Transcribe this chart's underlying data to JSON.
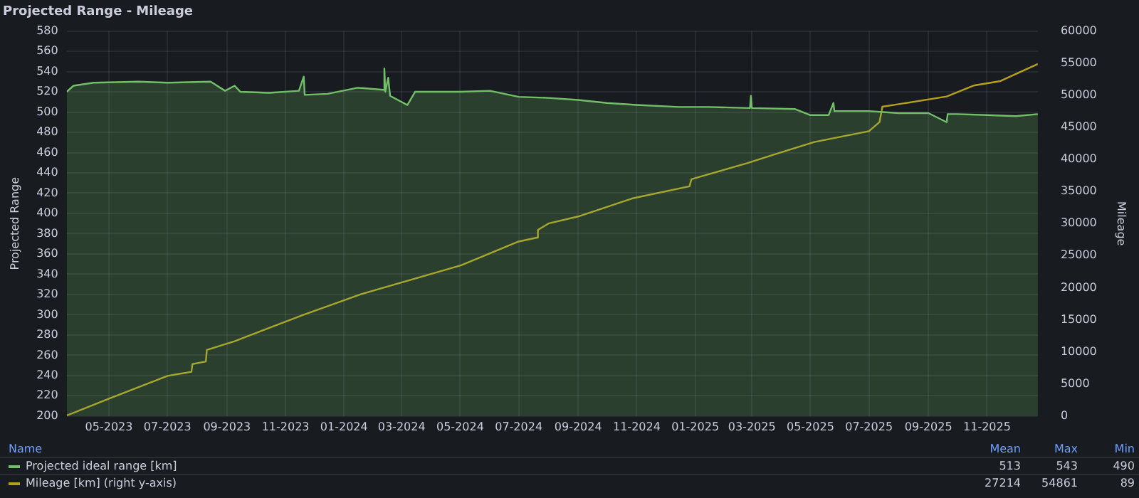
{
  "chart_data": {
    "type": "line",
    "title": "Projected Range - Mileage",
    "ylabel": "Projected Range",
    "y2label": "Mileage",
    "xlim": [
      "2023-03-18",
      "2025-12-24"
    ],
    "xticks": [
      {
        "value": "2023-05-01",
        "label": "05-2023"
      },
      {
        "value": "2023-07-01",
        "label": "07-2023"
      },
      {
        "value": "2023-09-01",
        "label": "09-2023"
      },
      {
        "value": "2023-11-01",
        "label": "11-2023"
      },
      {
        "value": "2024-01-01",
        "label": "01-2024"
      },
      {
        "value": "2024-03-01",
        "label": "03-2024"
      },
      {
        "value": "2024-05-01",
        "label": "05-2024"
      },
      {
        "value": "2024-07-01",
        "label": "07-2024"
      },
      {
        "value": "2024-09-01",
        "label": "09-2024"
      },
      {
        "value": "2024-11-01",
        "label": "11-2024"
      },
      {
        "value": "2025-01-01",
        "label": "01-2025"
      },
      {
        "value": "2025-03-01",
        "label": "03-2025"
      },
      {
        "value": "2025-05-01",
        "label": "05-2025"
      },
      {
        "value": "2025-07-01",
        "label": "07-2025"
      },
      {
        "value": "2025-09-01",
        "label": "09-2025"
      },
      {
        "value": "2025-11-01",
        "label": "11-2025"
      }
    ],
    "ylim": [
      200,
      580
    ],
    "yticks": [
      200,
      220,
      240,
      260,
      280,
      300,
      320,
      340,
      360,
      380,
      400,
      420,
      440,
      460,
      480,
      500,
      520,
      540,
      560,
      580
    ],
    "y2lim": [
      0,
      60000
    ],
    "y2ticks": [
      0,
      5000,
      10000,
      15000,
      20000,
      25000,
      30000,
      35000,
      40000,
      45000,
      50000,
      55000,
      60000
    ],
    "grid": true,
    "legend": "bottom",
    "marker": "none",
    "line_style": "solid",
    "series": [
      {
        "name": "Projected ideal range [km]",
        "color": "#73bf69",
        "type": "area",
        "x": [
          "2023-03-18",
          "2023-03-25",
          "2023-04-15",
          "2023-06-01",
          "2023-07-01",
          "2023-08-15",
          "2023-08-30",
          "2023-09-09",
          "2023-09-15",
          "2023-10-15",
          "2023-11-15",
          "2023-11-20",
          "2023-11-21",
          "2023-12-15",
          "2024-01-15",
          "2024-02-11",
          "2024-02-12",
          "2024-02-13",
          "2024-02-16",
          "2024-02-18",
          "2024-03-07",
          "2024-03-15",
          "2024-05-01",
          "2024-06-01",
          "2024-07-01",
          "2024-08-01",
          "2024-09-01",
          "2024-10-01",
          "2024-11-01",
          "2024-12-15",
          "2025-01-15",
          "2025-02-27",
          "2025-02-28",
          "2025-03-01",
          "2025-04-15",
          "2025-05-01",
          "2025-05-20",
          "2025-05-25",
          "2025-05-26",
          "2025-07-01",
          "2025-08-01",
          "2025-09-01",
          "2025-09-20",
          "2025-09-21",
          "2025-10-01",
          "2025-11-01",
          "2025-12-01",
          "2025-12-24"
        ],
        "values": [
          520,
          526,
          529,
          530,
          529,
          530,
          521,
          526,
          520,
          519,
          521,
          535,
          517,
          518,
          524,
          522,
          543,
          520,
          534,
          516,
          507,
          520,
          520,
          521,
          515,
          514,
          512,
          509,
          507,
          505,
          505,
          504,
          516,
          504,
          503,
          497,
          497,
          509,
          501,
          501,
          499,
          499,
          490,
          498,
          498,
          497,
          496,
          498
        ]
      },
      {
        "name": "Mileage [km] (right y-axis)",
        "color": "#b5a01e",
        "type": "line",
        "axis": "y2",
        "x": [
          "2023-03-18",
          "2023-05-01",
          "2023-07-01",
          "2023-07-26",
          "2023-07-27",
          "2023-08-10",
          "2023-08-11",
          "2023-09-09",
          "2023-10-15",
          "2023-11-20",
          "2024-01-19",
          "2024-05-02",
          "2024-07-01",
          "2024-07-20",
          "2024-07-21",
          "2024-08-01",
          "2024-09-01",
          "2024-10-27",
          "2024-12-26",
          "2024-12-28",
          "2025-02-24",
          "2025-03-25",
          "2025-05-05",
          "2025-07-01",
          "2025-07-12",
          "2025-07-15",
          "2025-09-20",
          "2025-10-18",
          "2025-11-15",
          "2025-12-24"
        ],
        "values": [
          89,
          2700,
          6250,
          6900,
          8100,
          8500,
          10300,
          11670,
          13750,
          15800,
          19000,
          23500,
          27200,
          27800,
          29000,
          30000,
          31100,
          33900,
          35800,
          36900,
          39400,
          40800,
          42700,
          44400,
          45800,
          48200,
          49800,
          51500,
          52200,
          54861
        ]
      }
    ],
    "annotations": [
      "Name",
      "Mean",
      "Max",
      "Min",
      "513",
      "543",
      "490",
      "27214",
      "54861",
      "89"
    ]
  }
}
